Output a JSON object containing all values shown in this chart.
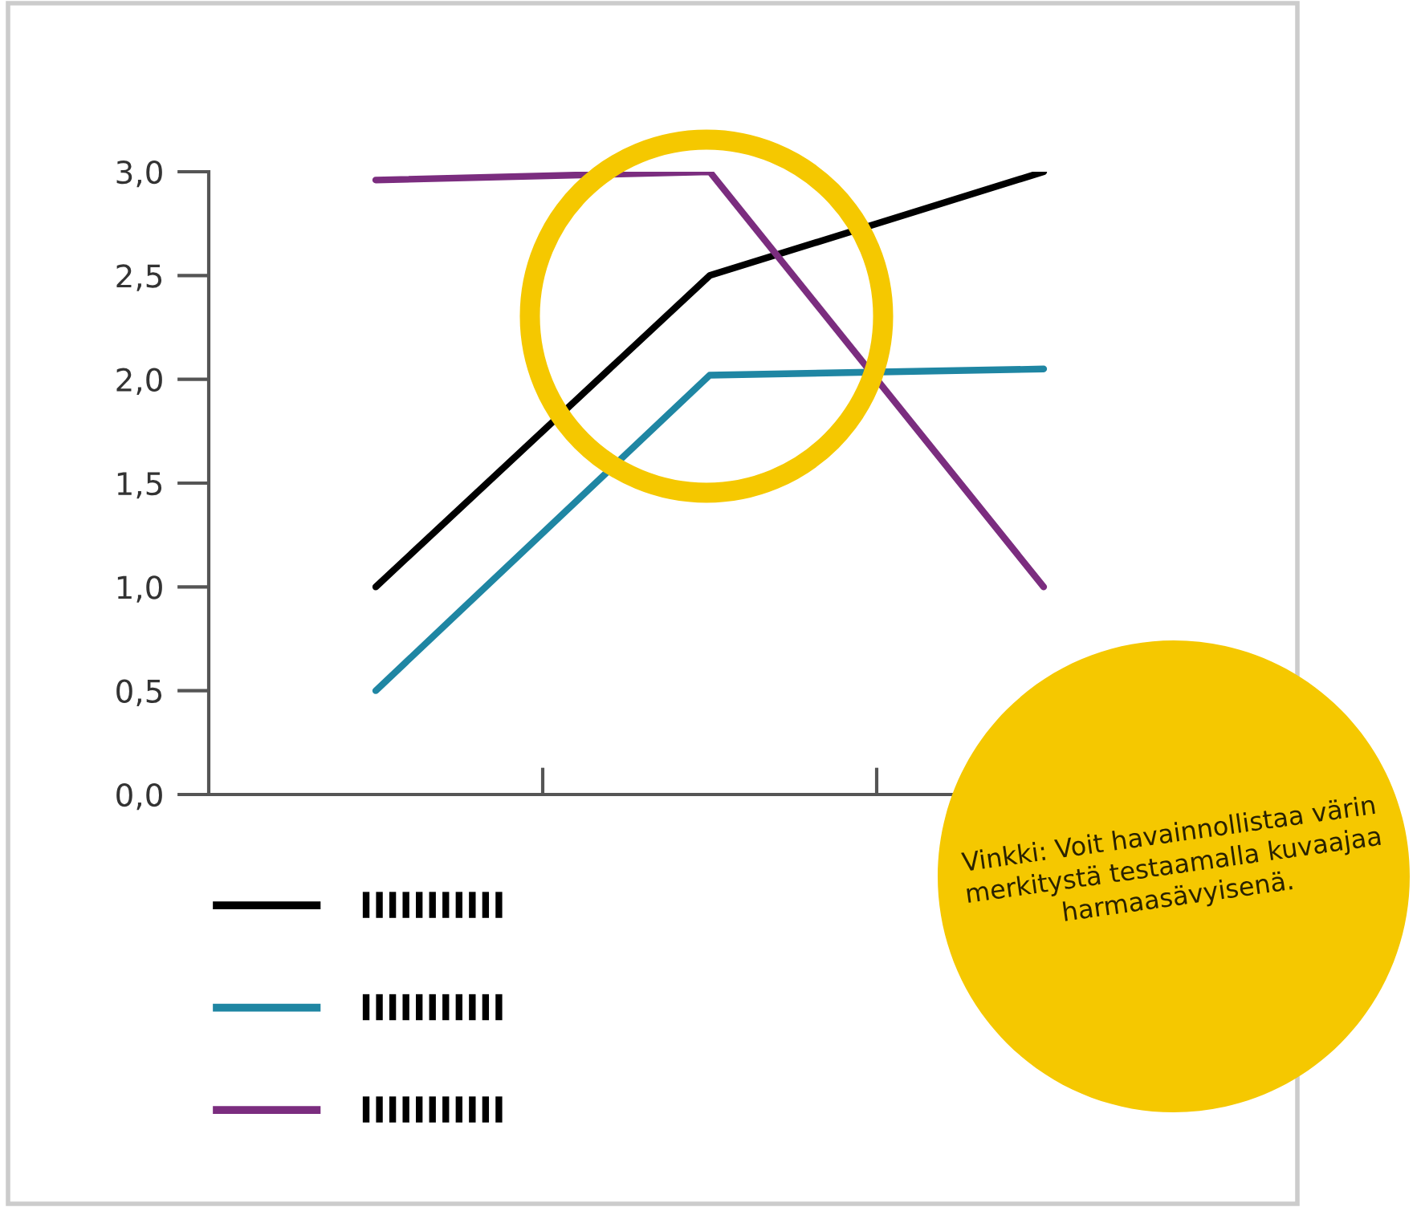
{
  "chart_data": {
    "type": "line",
    "categories": [
      null,
      null,
      null
    ],
    "series": [
      {
        "name": "IIIIIIIIIII",
        "color": "#000000",
        "values": [
          1.0,
          2.5,
          3.0
        ]
      },
      {
        "name": "IIIIIIIIIII",
        "color": "#1f86a3",
        "values": [
          0.5,
          2.02,
          2.05
        ]
      },
      {
        "name": "IIIIIIIIIII",
        "color": "#7b2d7f",
        "values": [
          2.96,
          3.0,
          1.0
        ]
      }
    ],
    "ylim": [
      0,
      3.0
    ],
    "yticks": [
      {
        "value": 0,
        "label": "0,0"
      },
      {
        "value": 0.5,
        "label": "0,5"
      },
      {
        "value": 1.0,
        "label": "1,0"
      },
      {
        "value": 1.5,
        "label": "1,5"
      },
      {
        "value": 2.0,
        "label": "2,0"
      },
      {
        "value": 2.5,
        "label": "2,5"
      },
      {
        "value": 3.0,
        "label": "3,0"
      }
    ],
    "grid": false,
    "legend": "bottom left",
    "marker": "none",
    "line_style": "solid",
    "annotations": [
      "Vinkki: Voit havainnollistaa värin merkitystä testaamalla kuvaajaa harmaasävyisenä."
    ]
  }
}
